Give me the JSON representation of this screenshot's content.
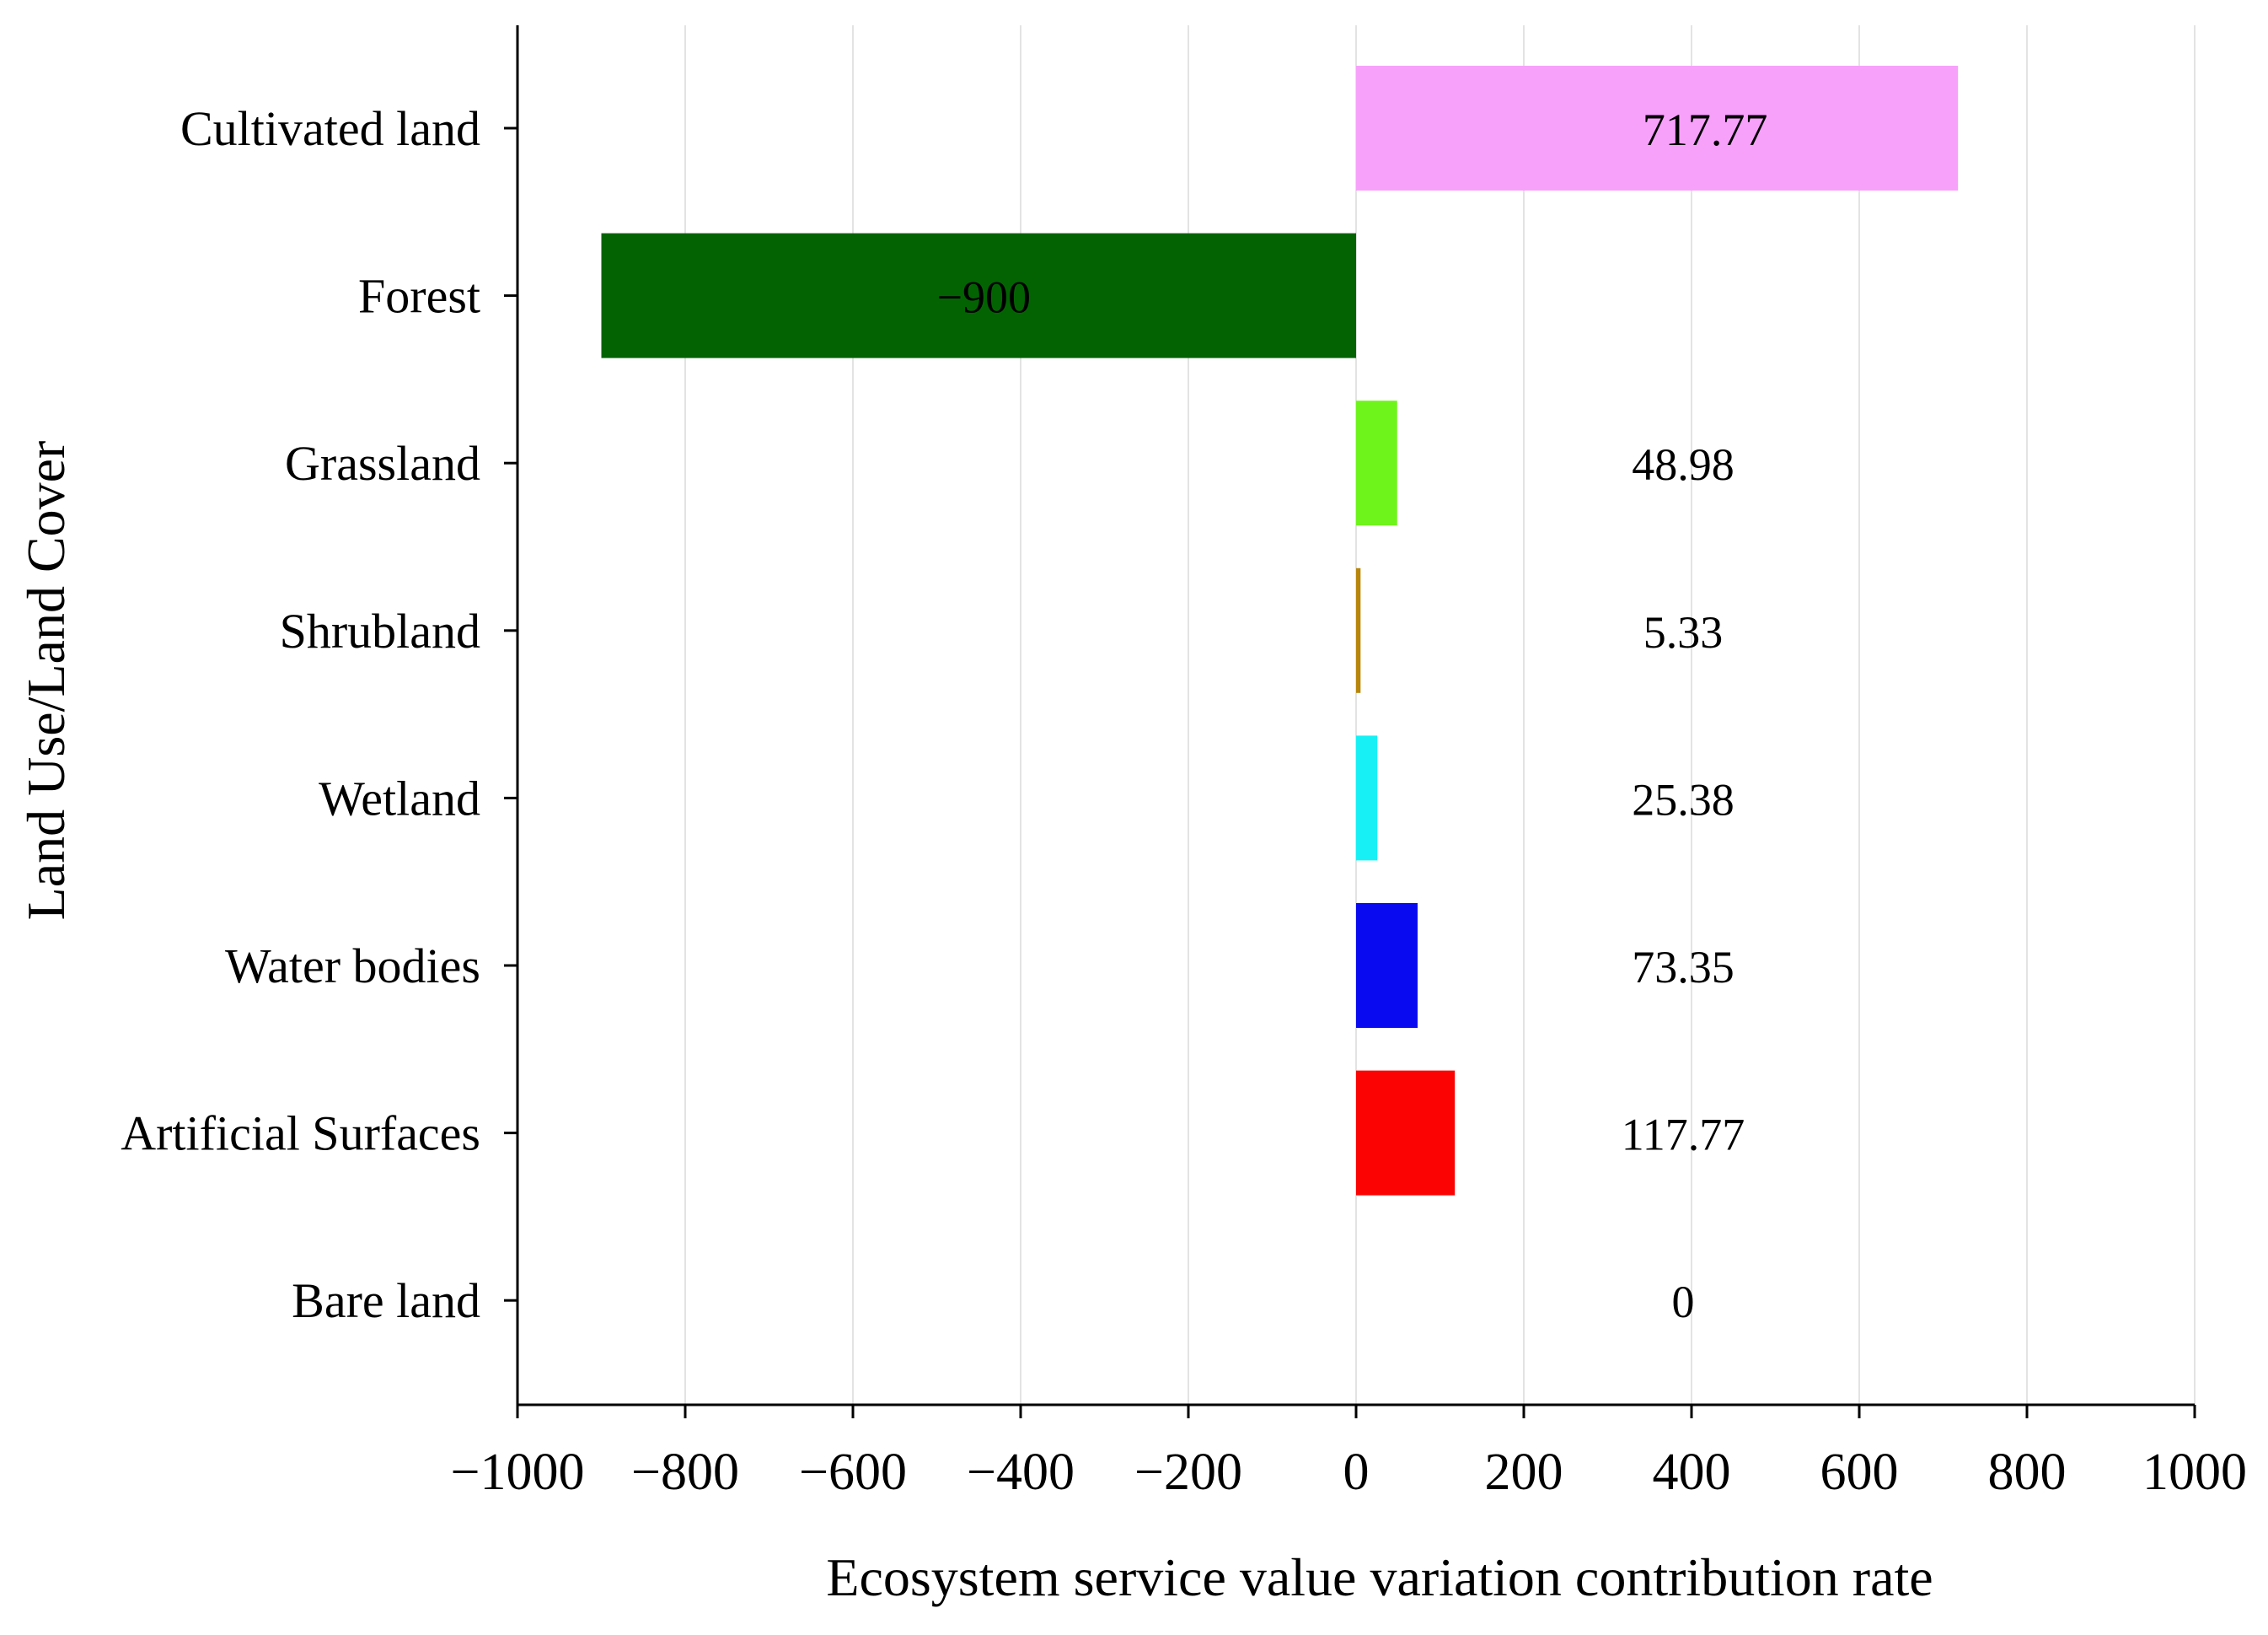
{
  "chart_data": {
    "type": "bar",
    "orientation": "horizontal",
    "categories": [
      "Cultivated land",
      "Forest",
      "Grassland",
      "Shrubland",
      "Wetland",
      "Water bodies",
      "Artificial Surfaces",
      "Bare land"
    ],
    "values": [
      717.77,
      -900,
      48.98,
      5.33,
      25.38,
      73.35,
      117.77,
      0
    ],
    "value_labels": [
      "717.77",
      "−900",
      "48.98",
      "5.33",
      "25.38",
      "73.35",
      "117.77",
      "0"
    ],
    "colors": [
      "#f7a1fb",
      "#036303",
      "#6ef41a",
      "#b8860b",
      "#17f1f5",
      "#0a0af0",
      "#fc0303",
      "#ffffff"
    ],
    "xlabel": "Ecosystem service value variation contribution rate",
    "ylabel": "Land Use/Land Cover",
    "xlim": [
      -1000,
      1000
    ],
    "xticks": [
      -1000,
      -800,
      -600,
      -400,
      -200,
      0,
      200,
      400,
      600,
      800,
      1000
    ],
    "xtick_labels": [
      "−1000",
      "−800",
      "−600",
      "−400",
      "−200",
      "0",
      "200",
      "400",
      "600",
      "800",
      "1000"
    ],
    "grid": "vertical",
    "legend": "none"
  }
}
